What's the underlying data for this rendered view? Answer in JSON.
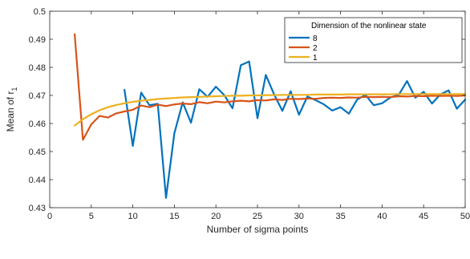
{
  "chart_data": {
    "type": "line",
    "title": "",
    "xlabel": "Number of sigma points",
    "ylabel_main": "Mean of r",
    "ylabel_sub": "1",
    "xlim": [
      0,
      50
    ],
    "ylim": [
      0.43,
      0.5
    ],
    "xticks": [
      0,
      5,
      10,
      15,
      20,
      25,
      30,
      35,
      40,
      45,
      50
    ],
    "yticks": [
      0.43,
      0.44,
      0.45,
      0.46,
      0.47,
      0.48,
      0.49,
      0.5
    ],
    "xtick_labels": [
      "0",
      "5",
      "10",
      "15",
      "20",
      "25",
      "30",
      "35",
      "40",
      "45",
      "50"
    ],
    "ytick_labels": [
      "0.43",
      "0.44",
      "0.45",
      "0.46",
      "0.47",
      "0.48",
      "0.49",
      "0.5"
    ],
    "grid": false,
    "legend_title": "Dimension of the nonlinear state",
    "legend_position": "top-right",
    "series": [
      {
        "name": "8",
        "color": "#0072BD",
        "x": [
          9,
          10,
          11,
          12,
          13,
          14,
          15,
          16,
          17,
          18,
          19,
          20,
          21,
          22,
          23,
          24,
          25,
          26,
          27,
          28,
          29,
          30,
          31,
          32,
          33,
          34,
          35,
          36,
          37,
          38,
          39,
          40,
          41,
          42,
          43,
          44,
          45,
          46,
          47,
          48,
          49,
          50
        ],
        "y": [
          0.472,
          0.452,
          0.471,
          0.4665,
          0.467,
          0.4335,
          0.4565,
          0.4675,
          0.4603,
          0.4722,
          0.4695,
          0.4731,
          0.4701,
          0.4654,
          0.4808,
          0.4821,
          0.4619,
          0.4773,
          0.4704,
          0.4645,
          0.4715,
          0.4631,
          0.4696,
          0.4683,
          0.4668,
          0.4646,
          0.4658,
          0.4635,
          0.4685,
          0.4702,
          0.4665,
          0.4672,
          0.4693,
          0.4702,
          0.4751,
          0.4692,
          0.4713,
          0.4671,
          0.4703,
          0.4718,
          0.4653,
          0.4685
        ]
      },
      {
        "name": "2",
        "color": "#D95319",
        "x": [
          3,
          4,
          5,
          6,
          7,
          8,
          9,
          10,
          11,
          12,
          13,
          14,
          15,
          16,
          17,
          18,
          19,
          20,
          21,
          22,
          23,
          24,
          25,
          26,
          27,
          28,
          29,
          30,
          31,
          32,
          33,
          34,
          35,
          36,
          37,
          38,
          39,
          40,
          41,
          42,
          43,
          44,
          45,
          46,
          47,
          48,
          49,
          50
        ],
        "y": [
          0.4918,
          0.4542,
          0.4597,
          0.4627,
          0.4621,
          0.4636,
          0.4643,
          0.4649,
          0.4664,
          0.4658,
          0.4667,
          0.4662,
          0.4668,
          0.4671,
          0.4669,
          0.4676,
          0.4672,
          0.4678,
          0.4675,
          0.4679,
          0.4681,
          0.4679,
          0.4683,
          0.4682,
          0.4686,
          0.4684,
          0.4688,
          0.4687,
          0.4689,
          0.4688,
          0.4691,
          0.4692,
          0.4691,
          0.4693,
          0.4692,
          0.4695,
          0.4694,
          0.4695,
          0.4694,
          0.4697,
          0.4696,
          0.4698,
          0.4697,
          0.4699,
          0.4698,
          0.4699,
          0.4698,
          0.47
        ]
      },
      {
        "name": "1",
        "color": "#EDB120",
        "x": [
          3,
          4,
          5,
          6,
          7,
          8,
          9,
          10,
          11,
          12,
          13,
          14,
          15,
          16,
          17,
          18,
          19,
          20,
          21,
          22,
          23,
          24,
          25,
          26,
          27,
          28,
          29,
          30,
          31,
          32,
          33,
          34,
          35,
          36,
          37,
          38,
          39,
          40,
          41,
          42,
          43,
          44,
          45,
          46,
          47,
          48,
          49,
          50
        ],
        "y": [
          0.4593,
          0.4615,
          0.4633,
          0.4647,
          0.4658,
          0.4666,
          0.4672,
          0.4677,
          0.4681,
          0.4684,
          0.4687,
          0.4689,
          0.4691,
          0.4693,
          0.4694,
          0.4695,
          0.4696,
          0.4697,
          0.4698,
          0.4699,
          0.4699,
          0.47,
          0.47,
          0.4701,
          0.4701,
          0.4702,
          0.4702,
          0.4702,
          0.4702,
          0.4703,
          0.4703,
          0.4703,
          0.4703,
          0.4704,
          0.4704,
          0.4704,
          0.4704,
          0.4704,
          0.4704,
          0.4705,
          0.4705,
          0.4705,
          0.4705,
          0.4705,
          0.4705,
          0.4705,
          0.4705,
          0.4705
        ]
      }
    ]
  }
}
